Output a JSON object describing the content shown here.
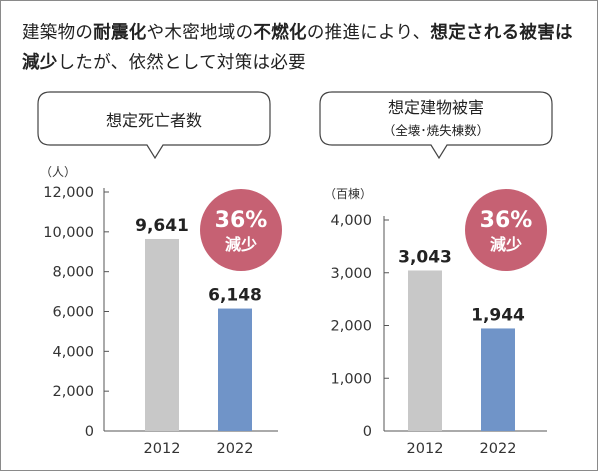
{
  "headline": {
    "segments": [
      {
        "text": "建築物の",
        "bold": false
      },
      {
        "text": "耐震化",
        "bold": true
      },
      {
        "text": "や木密地域の",
        "bold": false
      },
      {
        "text": "不燃化",
        "bold": true
      },
      {
        "text": "の推進により、",
        "bold": false
      },
      {
        "text": "想定される被害は減少",
        "bold": true
      },
      {
        "text": "したが、依然として対策は必要",
        "bold": false
      }
    ]
  },
  "colors": {
    "bar_2012": "#c8c8c8",
    "bar_2022": "#7094c8",
    "badge": "#c66173",
    "axis": "#555555"
  },
  "chart_data": [
    {
      "type": "bar",
      "title": "想定死亡者数",
      "unit": "（人）",
      "categories": [
        "2012",
        "2022"
      ],
      "values": [
        9641,
        6148
      ],
      "value_labels": [
        "9,641",
        "6,148"
      ],
      "ylim": [
        0,
        12000
      ],
      "yticks": [
        0,
        2000,
        4000,
        6000,
        8000,
        10000,
        12000
      ],
      "ytick_labels": [
        "0",
        "2,000",
        "4,000",
        "6,000",
        "8,000",
        "10,000",
        "12,000"
      ],
      "badge": {
        "line1": "36%",
        "line2": "減少"
      }
    },
    {
      "type": "bar",
      "title": "想定建物被害",
      "subtitle": "（全壊･焼失棟数）",
      "unit": "（百棟）",
      "categories": [
        "2012",
        "2022"
      ],
      "values": [
        3043,
        1944
      ],
      "value_labels": [
        "3,043",
        "1,944"
      ],
      "ylim": [
        0,
        4000
      ],
      "yticks": [
        0,
        1000,
        2000,
        3000,
        4000
      ],
      "ytick_labels": [
        "0",
        "1,000",
        "2,000",
        "3,000",
        "4,000"
      ],
      "badge": {
        "line1": "36%",
        "line2": "減少"
      }
    }
  ]
}
